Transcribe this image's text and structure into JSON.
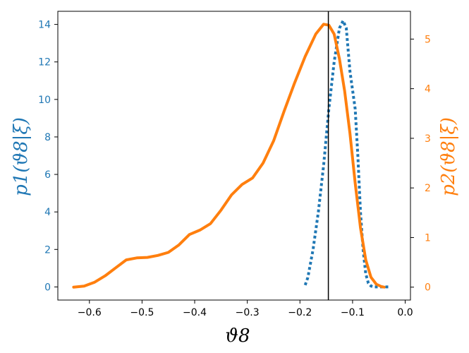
{
  "chart_data": {
    "type": "line",
    "xlabel": "ϑ8",
    "ylabel_left": "p1(ϑ8|ξ)",
    "ylabel_right": "p2(ϑ8|ξ)",
    "xlim": [
      -0.66,
      0.01
    ],
    "ylim_left": [
      -0.7,
      14.7
    ],
    "ylim_right": [
      -0.26,
      5.56
    ],
    "x_ticks": [
      -0.6,
      -0.5,
      -0.4,
      -0.3,
      -0.2,
      -0.1,
      0.0
    ],
    "x_tick_labels": [
      "−0.6",
      "−0.5",
      "−0.4",
      "−0.3",
      "−0.2",
      "−0.1",
      "0.0"
    ],
    "y_left_ticks": [
      0,
      2,
      4,
      6,
      8,
      10,
      12,
      14
    ],
    "y_left_tick_labels": [
      "0",
      "2",
      "4",
      "6",
      "8",
      "10",
      "12",
      "14"
    ],
    "y_right_ticks": [
      0,
      1,
      2,
      3,
      4,
      5
    ],
    "y_right_tick_labels": [
      "0",
      "1",
      "2",
      "3",
      "4",
      "5"
    ],
    "vline_x": -0.146,
    "grid": false,
    "colors": {
      "series1": "#1f77b4",
      "series2": "#ff7f0e",
      "vline": "#000000"
    },
    "series": [
      {
        "axis": "left",
        "style": "dotted",
        "color": "#1f77b4",
        "x": [
          -0.19,
          -0.185,
          -0.175,
          -0.165,
          -0.155,
          -0.145,
          -0.135,
          -0.125,
          -0.118,
          -0.112,
          -0.105,
          -0.095,
          -0.09,
          -0.085,
          -0.08,
          -0.075,
          -0.07,
          -0.065,
          -0.06,
          -0.05,
          -0.04,
          -0.03
        ],
        "y": [
          0.1,
          0.5,
          2.0,
          4.0,
          6.5,
          9.5,
          12.0,
          13.8,
          14.2,
          13.8,
          11.5,
          9.5,
          7.0,
          4.0,
          2.0,
          0.7,
          0.2,
          0.05,
          0.0,
          0.0,
          0.0,
          0.0
        ]
      },
      {
        "axis": "right",
        "style": "solid",
        "color": "#ff7f0e",
        "x": [
          -0.63,
          -0.61,
          -0.59,
          -0.57,
          -0.55,
          -0.53,
          -0.51,
          -0.49,
          -0.47,
          -0.45,
          -0.43,
          -0.41,
          -0.39,
          -0.37,
          -0.35,
          -0.33,
          -0.31,
          -0.29,
          -0.27,
          -0.25,
          -0.23,
          -0.21,
          -0.19,
          -0.17,
          -0.155,
          -0.145,
          -0.135,
          -0.125,
          -0.115,
          -0.105,
          -0.095,
          -0.085,
          -0.075,
          -0.065,
          -0.055,
          -0.045,
          -0.04
        ],
        "y": [
          0.0,
          0.02,
          0.1,
          0.23,
          0.39,
          0.55,
          0.59,
          0.6,
          0.64,
          0.7,
          0.85,
          1.06,
          1.15,
          1.28,
          1.55,
          1.86,
          2.07,
          2.2,
          2.5,
          2.95,
          3.55,
          4.12,
          4.65,
          5.1,
          5.3,
          5.28,
          5.1,
          4.6,
          3.95,
          3.1,
          2.1,
          1.2,
          0.55,
          0.2,
          0.06,
          0.01,
          0.0
        ]
      }
    ]
  }
}
